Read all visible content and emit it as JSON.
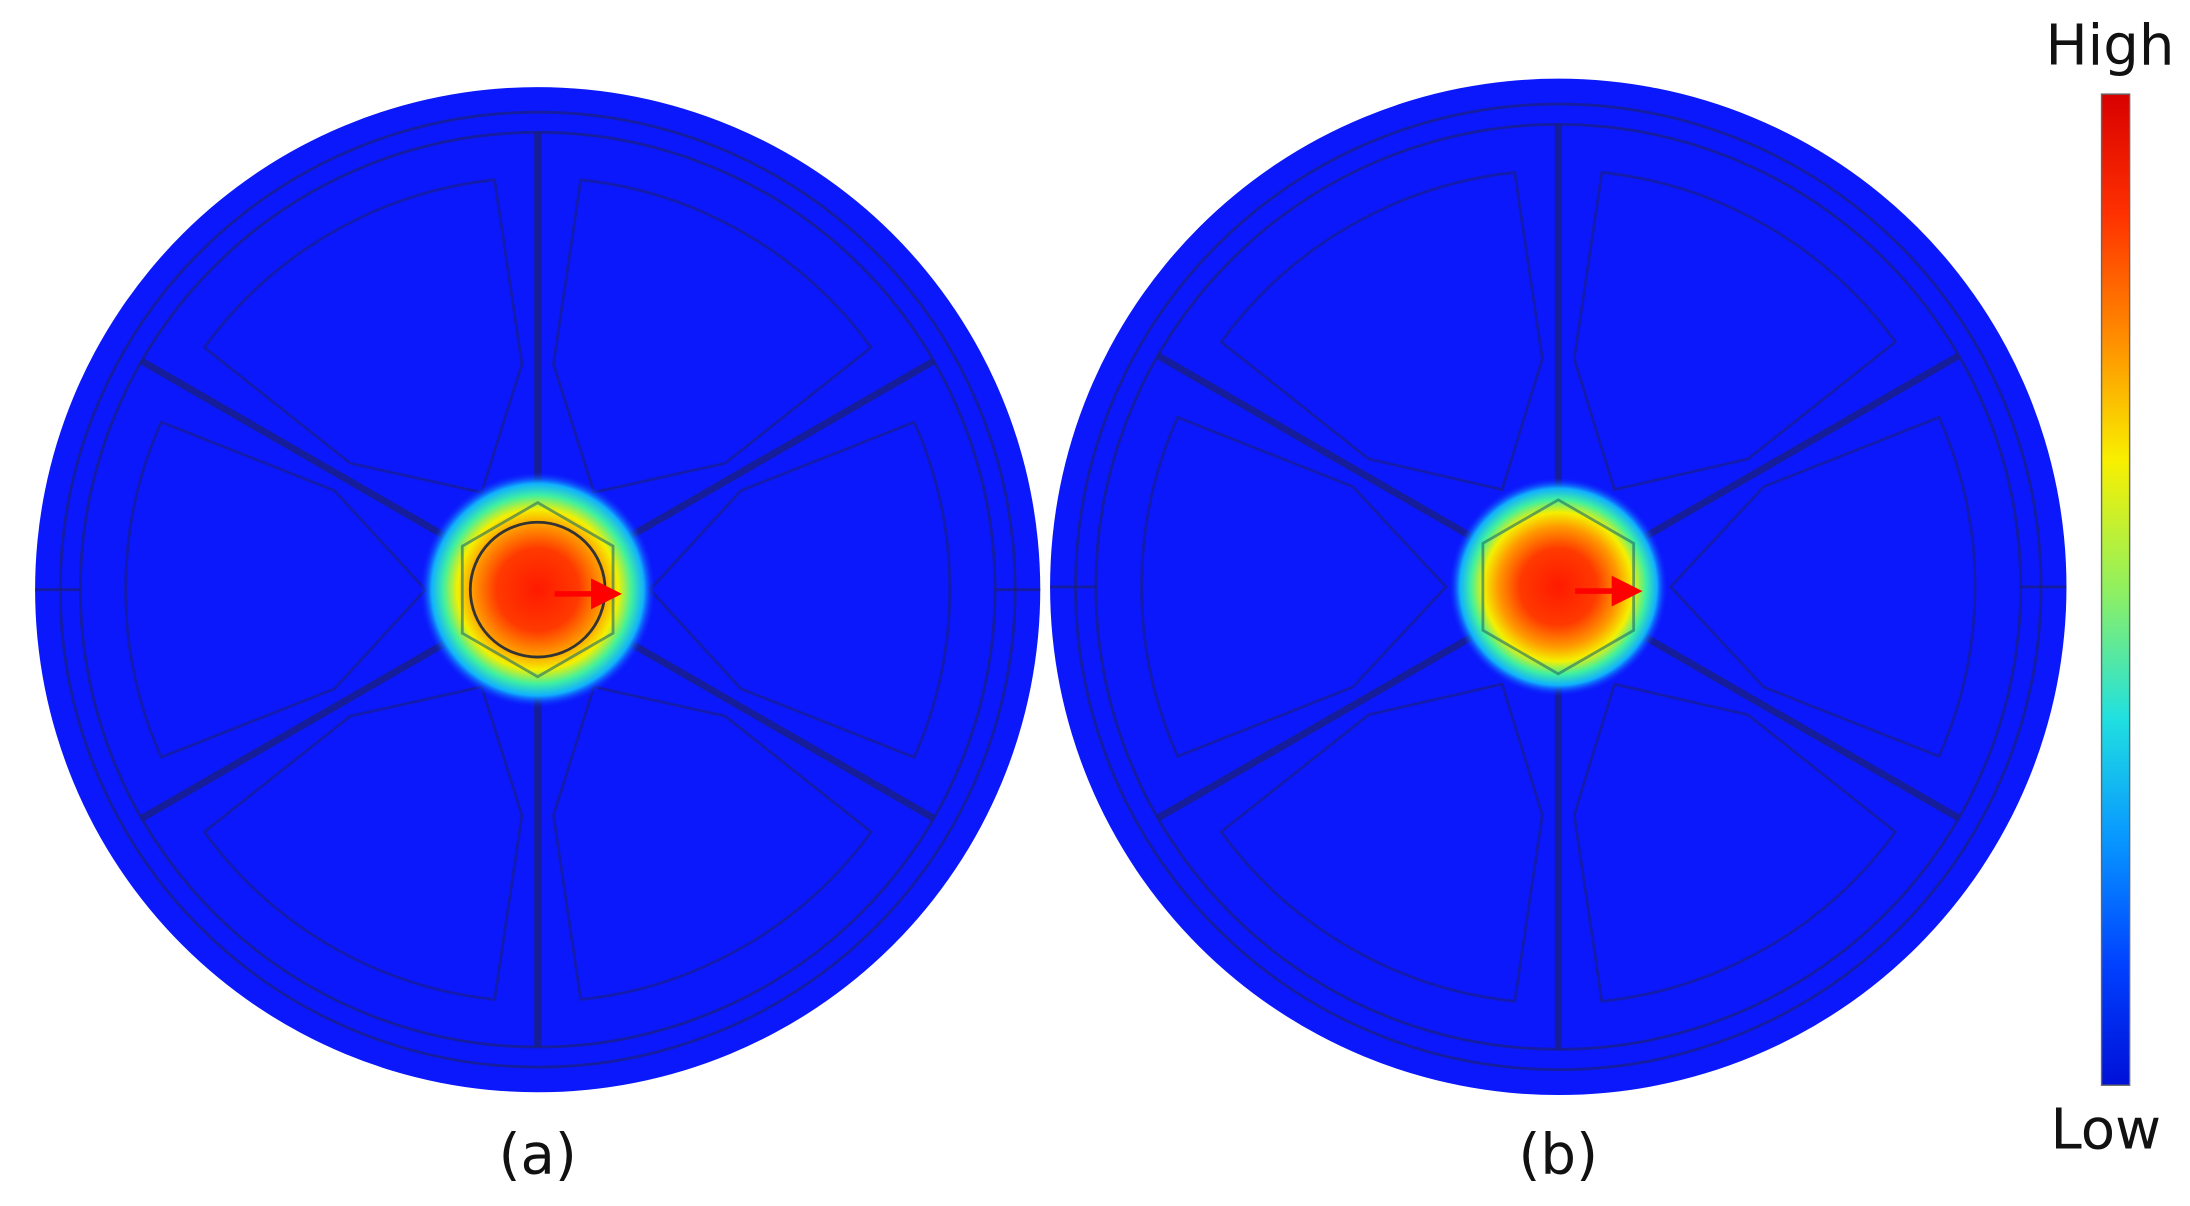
{
  "panels": [
    {
      "label": "(a)"
    },
    {
      "label": "(b)"
    }
  ],
  "colorbar": {
    "high": "High",
    "low": "Low"
  }
}
